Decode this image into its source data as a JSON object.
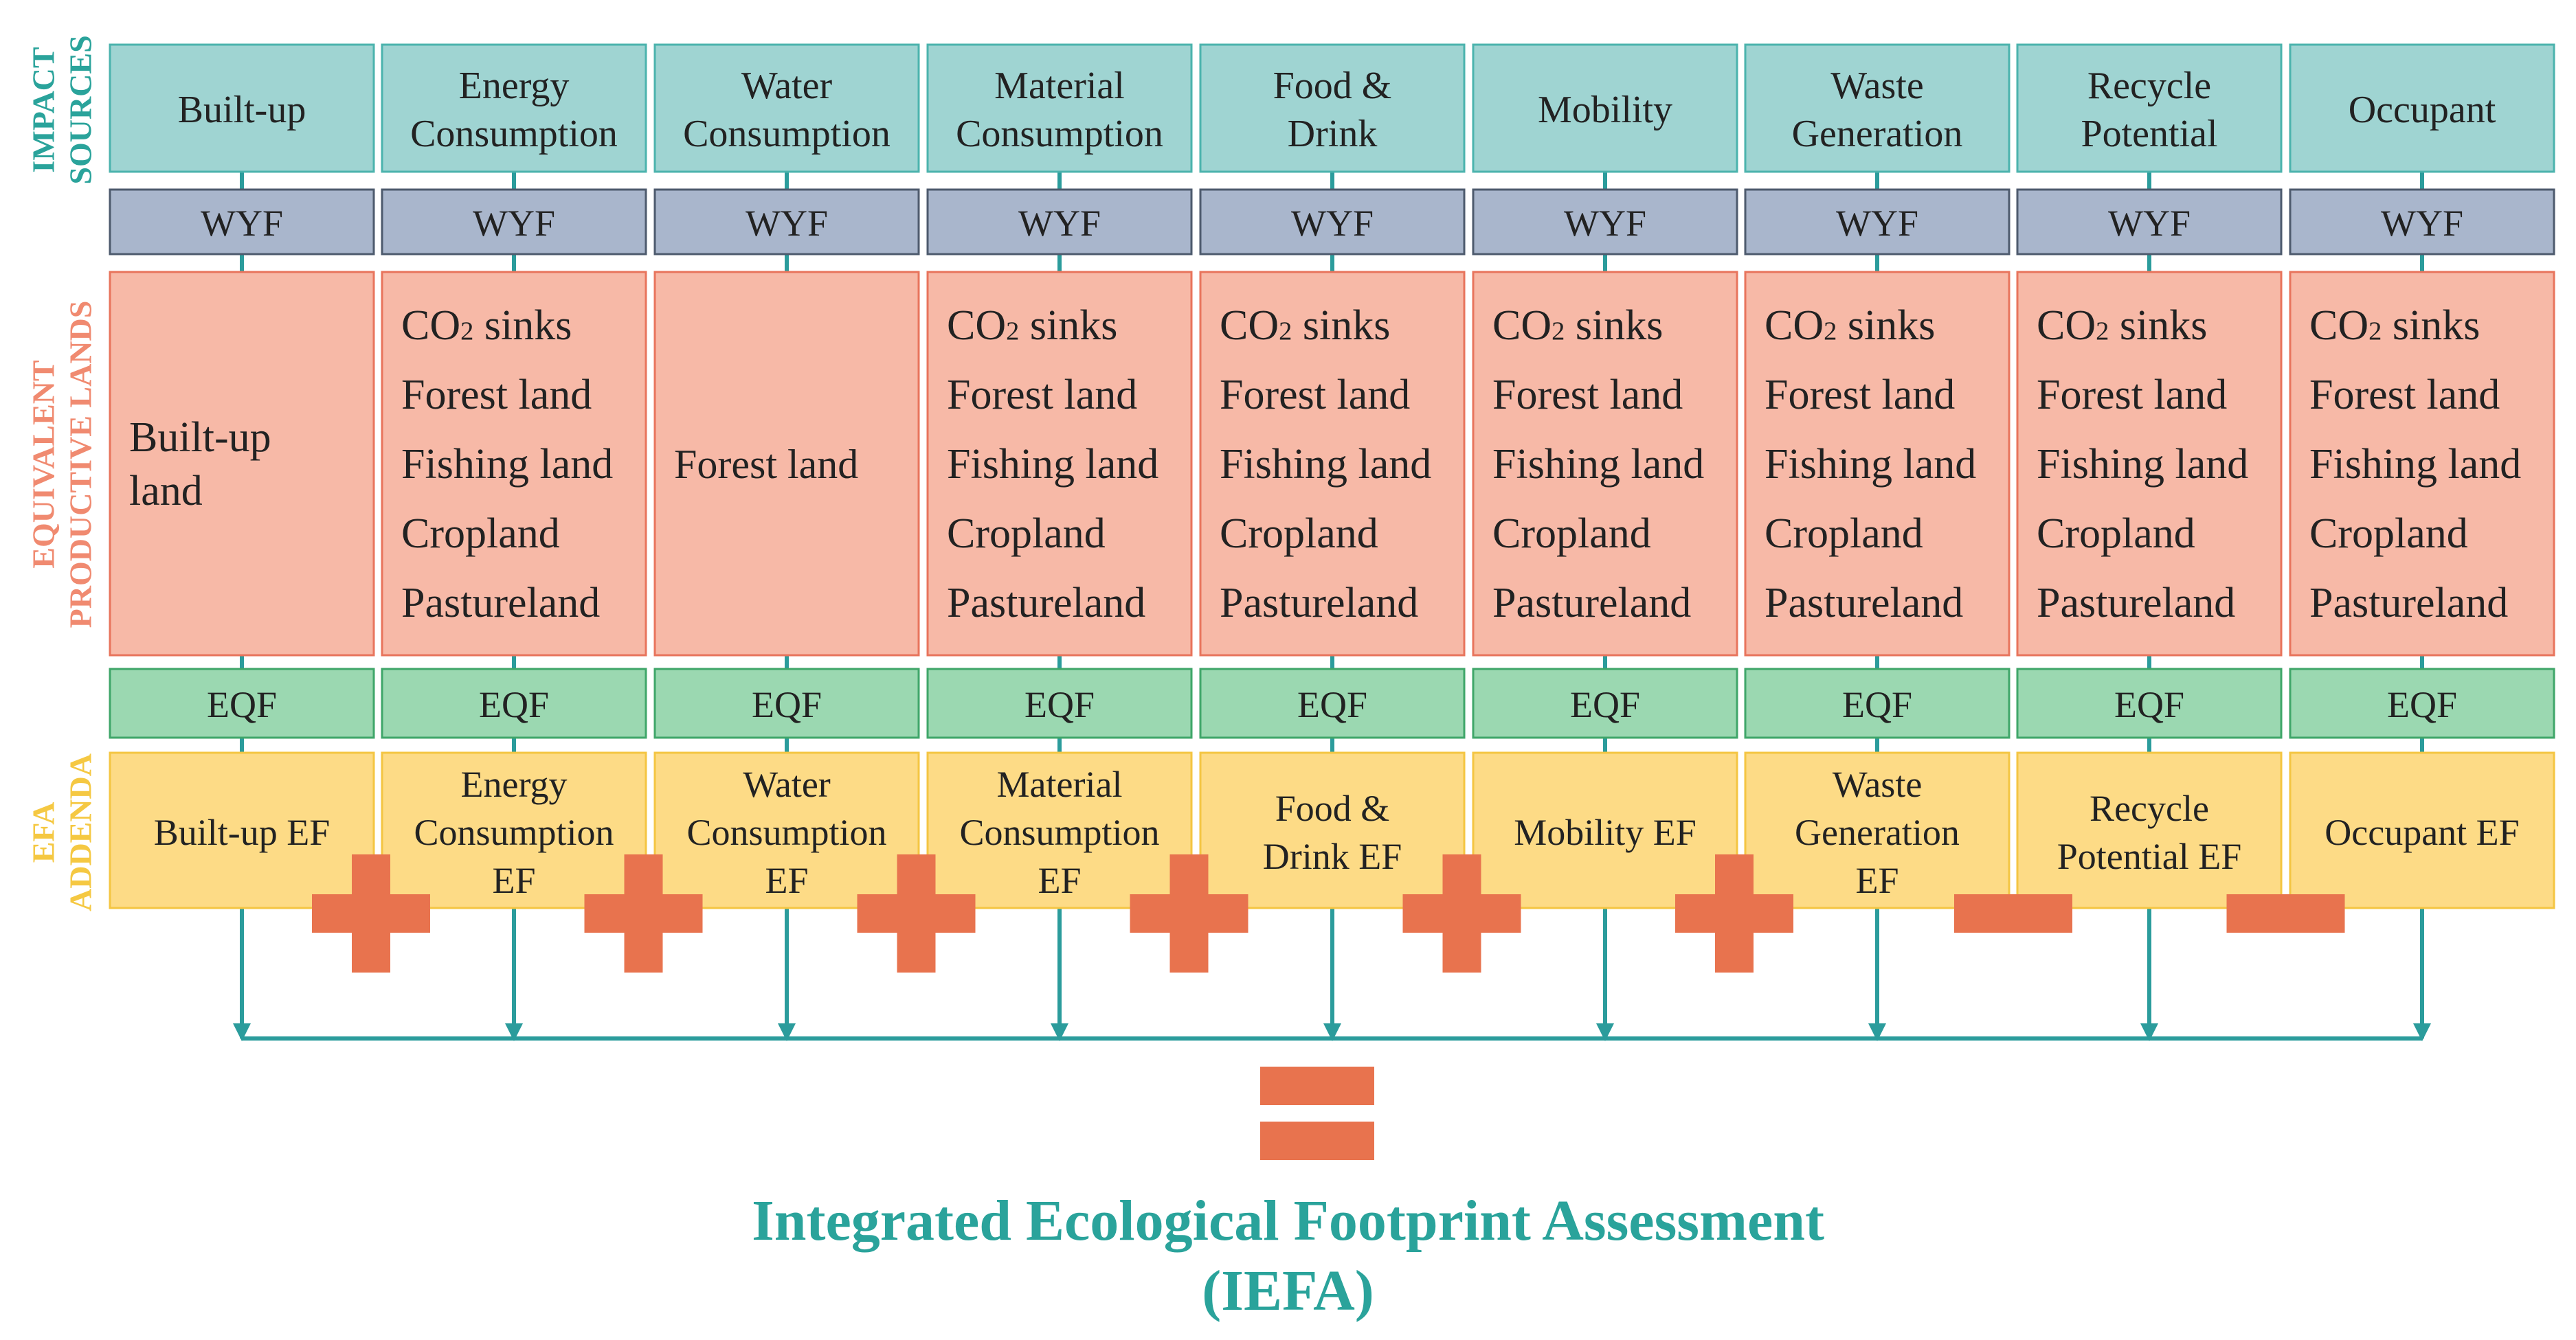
{
  "rows": {
    "impact_sources": [
      "IMPACT",
      "SOURCES"
    ],
    "equivalent_lands": [
      "EQUIVALENT",
      "PRODUCTIVE LANDS"
    ],
    "efa_addenda": [
      "EFA",
      "ADDENDA"
    ]
  },
  "columns": [
    {
      "source": [
        "Built-up"
      ],
      "lands": [
        "Built-up",
        "land"
      ],
      "ef": [
        "Built-up  EF"
      ]
    },
    {
      "source": [
        "Energy",
        "Consumption"
      ],
      "lands": [
        "CO2 sinks",
        "Forest land",
        "Fishing land",
        "Cropland",
        "Pastureland"
      ],
      "ef": [
        "Energy",
        "Consumption",
        "EF"
      ]
    },
    {
      "source": [
        "Water",
        "Consumption"
      ],
      "lands": [
        "Forest land"
      ],
      "ef": [
        "Water",
        "Consumption",
        "EF"
      ]
    },
    {
      "source": [
        "Material",
        "Consumption"
      ],
      "lands": [
        "CO2 sinks",
        "Forest land",
        "Fishing land",
        "Cropland",
        "Pastureland"
      ],
      "ef": [
        "Material",
        "Consumption",
        "EF"
      ]
    },
    {
      "source": [
        "Food &",
        "Drink"
      ],
      "lands": [
        "CO2 sinks",
        "Forest land",
        "Fishing land",
        "Cropland",
        "Pastureland"
      ],
      "ef": [
        "Food &",
        "Drink EF"
      ]
    },
    {
      "source": [
        "Mobility"
      ],
      "lands": [
        "CO2 sinks",
        "Forest land",
        "Fishing land",
        "Cropland",
        "Pastureland"
      ],
      "ef": [
        "Mobility  EF"
      ]
    },
    {
      "source": [
        "Waste",
        "Generation"
      ],
      "lands": [
        "CO2 sinks",
        "Forest land",
        "Fishing land",
        "Cropland",
        "Pastureland"
      ],
      "ef": [
        "Waste",
        "Generation",
        "EF"
      ]
    },
    {
      "source": [
        "Recycle",
        "Potential"
      ],
      "lands": [
        "CO2 sinks",
        "Forest land",
        "Fishing land",
        "Cropland",
        "Pastureland"
      ],
      "ef": [
        "Recycle",
        "Potential  EF"
      ]
    },
    {
      "source": [
        "Occupant"
      ],
      "lands": [
        "CO2 sinks",
        "Forest land",
        "Fishing land",
        "Cropland",
        "Pastureland"
      ],
      "ef": [
        "Occupant  EF"
      ]
    }
  ],
  "wyf_label": "WYF",
  "eqf_label": "EQF",
  "operators": [
    "+",
    "+",
    "+",
    "+",
    "+",
    "+",
    "−",
    "−"
  ],
  "equals": "=",
  "title_line1": "Integrated Ecological Footprint Assessment",
  "title_line2": "(IEFA)",
  "colors": {
    "teal": "#9fd4d2",
    "teal_border": "#4bb3ad",
    "slate": "#a9b6cc",
    "slate_border": "#4d5a6d",
    "salmon": "#f7b9a7",
    "salmon_border": "#e8745c",
    "green": "#9bd8b1",
    "green_border": "#3fa669",
    "yellow": "#fddb86",
    "yellow_border": "#f4c542",
    "operator": "#e8734e",
    "connector": "#2b9c9c",
    "label_teal": "#2aa39b",
    "label_salmon": "#f08a70",
    "label_yellow": "#f5c842"
  }
}
